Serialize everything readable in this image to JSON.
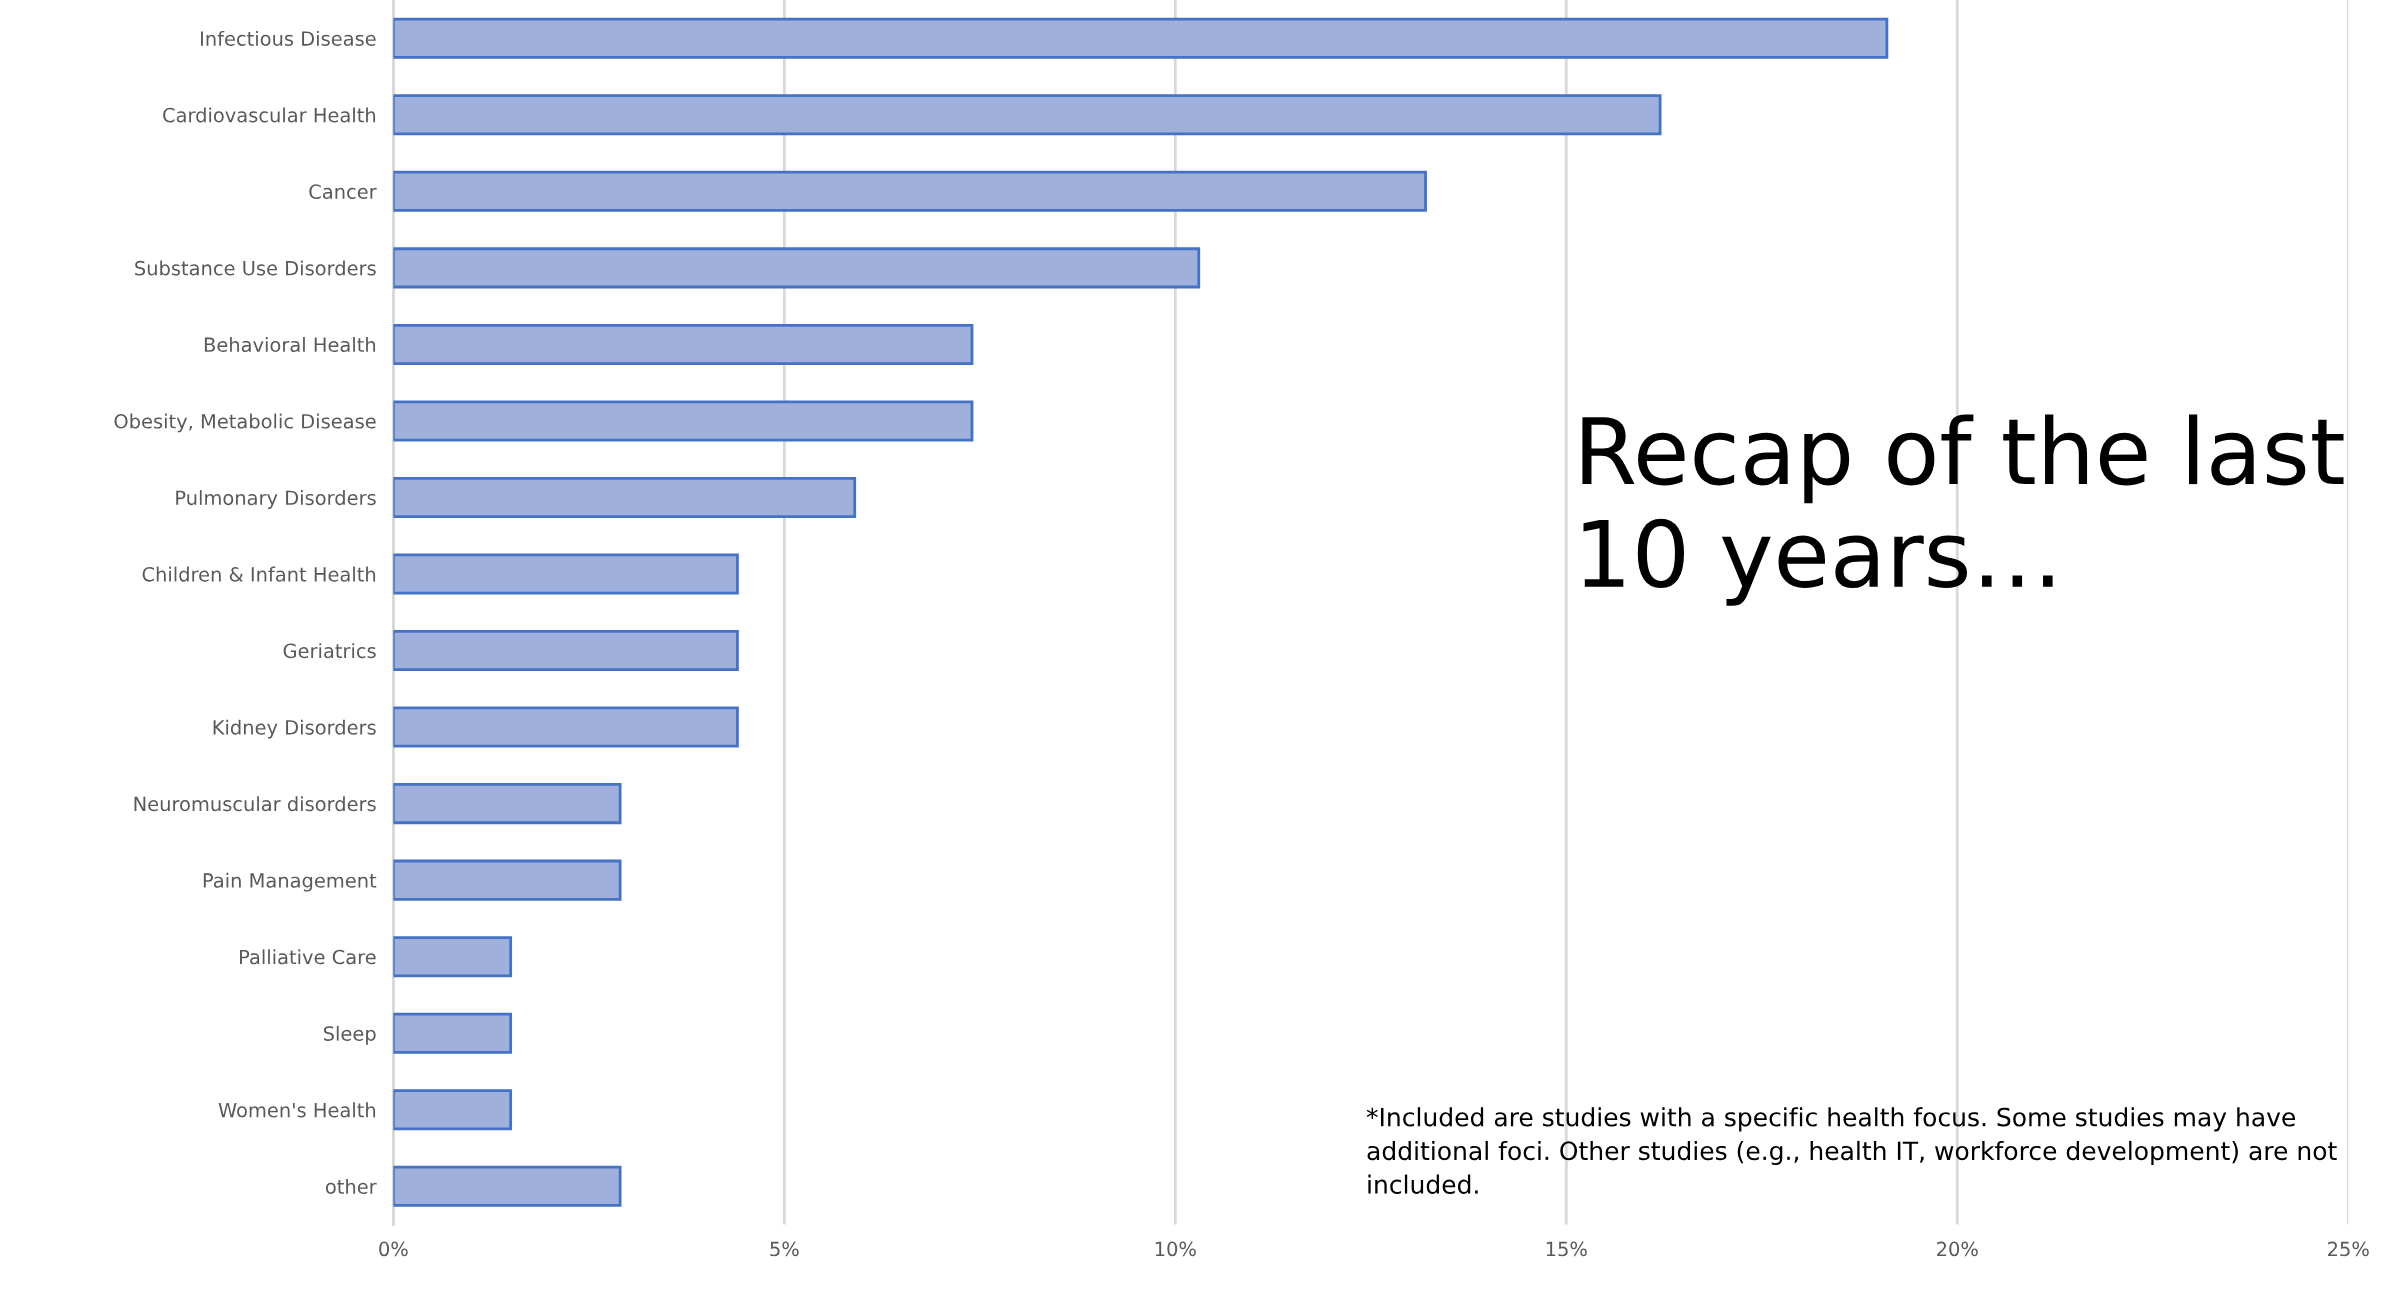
{
  "chart_data": {
    "type": "bar",
    "orientation": "horizontal",
    "title": "Recap of the last 10 years…",
    "categories": [
      "Infectious Disease",
      "Cardiovascular Health",
      "Cancer",
      "Substance Use Disorders",
      "Behavioral Health",
      "Obesity, Metabolic Disease",
      "Pulmonary Disorders",
      "Children & Infant Health",
      "Geriatrics",
      "Kidney Disorders",
      "Neuromuscular disorders",
      "Pain Management",
      "Palliative Care",
      "Sleep",
      "Women's Health",
      "other"
    ],
    "values": [
      19.1,
      16.2,
      13.2,
      10.3,
      7.4,
      7.4,
      5.9,
      4.4,
      4.4,
      4.4,
      2.9,
      2.9,
      1.5,
      1.5,
      1.5,
      2.9
    ],
    "color": "#9fb0dd",
    "xlim": [
      0,
      25
    ],
    "xticks": [
      {
        "value": 0,
        "label": "0%"
      },
      {
        "value": 5,
        "label": "5%"
      },
      {
        "value": 10,
        "label": "10%"
      },
      {
        "value": 15,
        "label": "15%"
      },
      {
        "value": 20,
        "label": "20%"
      },
      {
        "value": 25,
        "label": "25%"
      }
    ],
    "grid": "x",
    "legend": false,
    "annotations": [
      "*Included are studies with a specific health focus. Some studies may have additional foci. Other studies (e.g., health IT, workforce development) are not included."
    ]
  }
}
